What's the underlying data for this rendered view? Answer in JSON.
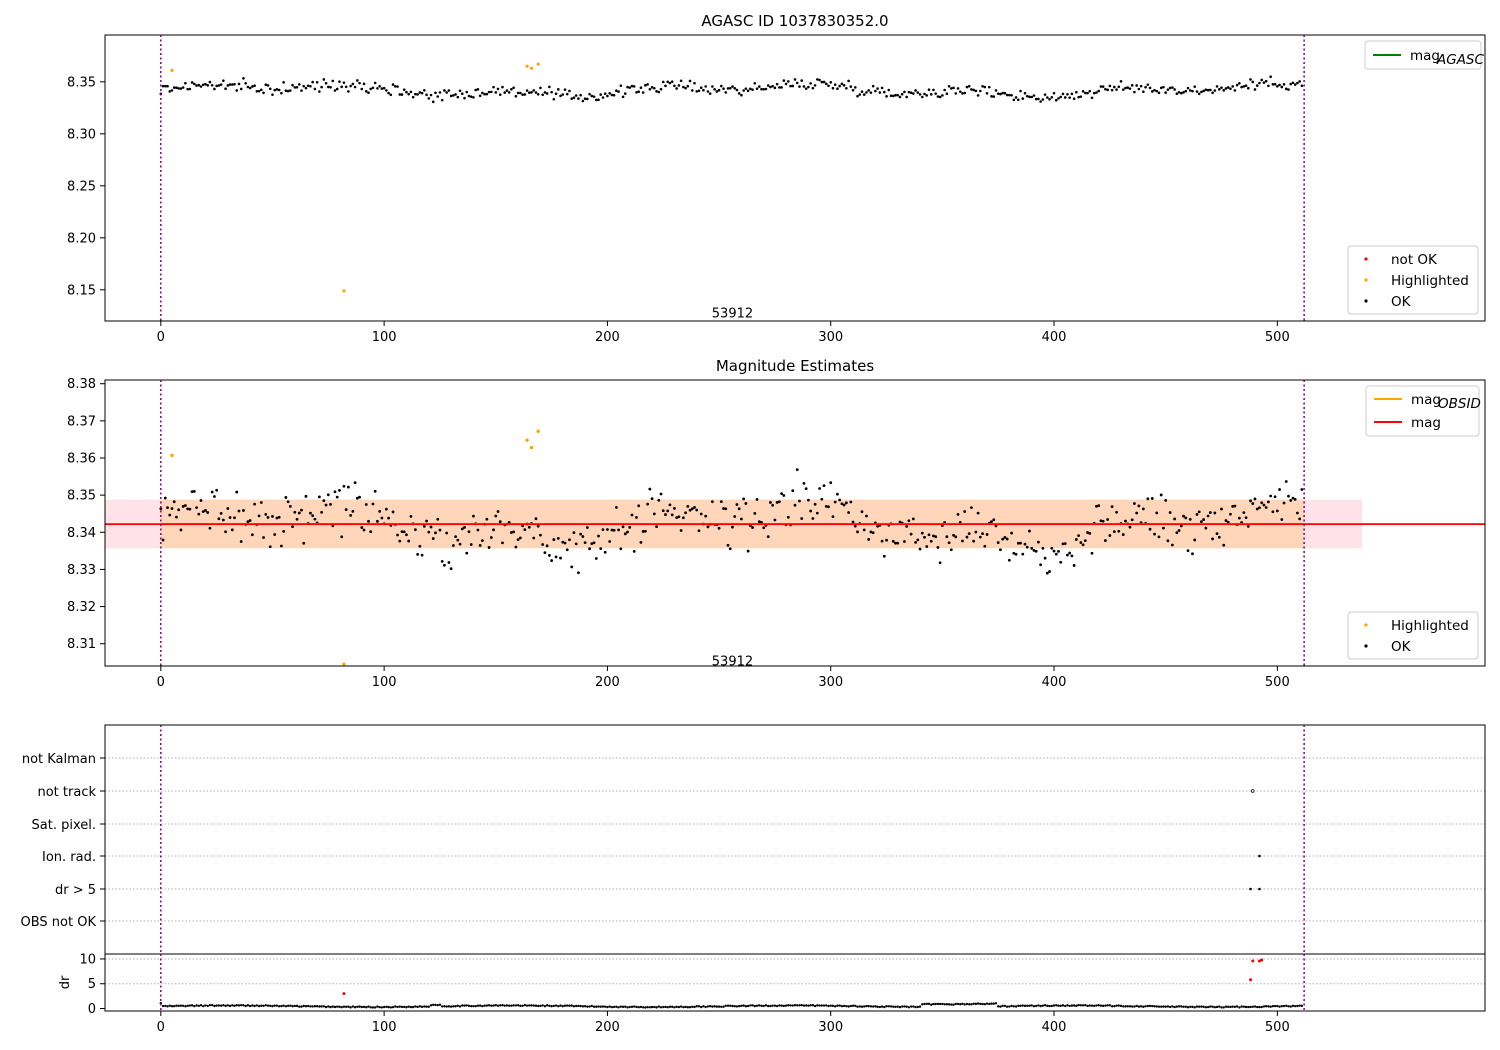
{
  "chart_data": [
    {
      "type": "scatter",
      "title": "AGASC ID 1037830352.0",
      "xlim": [
        -25,
        593
      ],
      "ylim": [
        8.12,
        8.395
      ],
      "xticks": [
        0,
        100,
        200,
        300,
        400,
        500
      ],
      "yticks": [
        8.15,
        8.2,
        8.25,
        8.3,
        8.35
      ],
      "ytick_labels": [
        "8.15",
        "8.20",
        "8.25",
        "8.30",
        "8.35"
      ],
      "vlines": [
        0,
        512
      ],
      "annotation": {
        "text": "53912",
        "x": 256,
        "y": 8.128
      },
      "baseline": 8.342,
      "noise": 0.006,
      "n_points": 512,
      "highlighted": [
        {
          "x": 5,
          "y": 8.361
        },
        {
          "x": 164,
          "y": 8.365
        },
        {
          "x": 166,
          "y": 8.363
        },
        {
          "x": 169,
          "y": 8.367
        },
        {
          "x": 82,
          "y": 8.149
        }
      ],
      "legend_lines": [
        {
          "label": "mag",
          "sub": "AGASC",
          "color": "#008000"
        }
      ],
      "legend_points": [
        {
          "label": "not OK",
          "color": "#ff0000"
        },
        {
          "label": "Highlighted",
          "color": "#ffa500"
        },
        {
          "label": "OK",
          "color": "#000000"
        }
      ]
    },
    {
      "type": "scatter",
      "title": "Magnitude Estimates",
      "xlim": [
        -25,
        593
      ],
      "ylim": [
        8.304,
        8.381
      ],
      "xticks": [
        0,
        100,
        200,
        300,
        400,
        500
      ],
      "yticks": [
        8.31,
        8.32,
        8.33,
        8.34,
        8.35,
        8.36,
        8.37,
        8.38
      ],
      "ytick_labels": [
        "8.31",
        "8.32",
        "8.33",
        "8.34",
        "8.35",
        "8.36",
        "8.37",
        "8.38"
      ],
      "vlines": [
        0,
        512
      ],
      "annotation": {
        "text": "53912",
        "x": 256,
        "y": 8.3055
      },
      "mag": 8.3422,
      "band_outer": [
        8.3357,
        8.3488
      ],
      "band_inner": [
        8.3357,
        8.3488
      ],
      "band_x": [
        -25,
        538
      ],
      "baseline": 8.342,
      "noise": 0.0065,
      "n_points": 512,
      "highlighted": [
        {
          "x": 5,
          "y": 8.3607
        },
        {
          "x": 164,
          "y": 8.3648
        },
        {
          "x": 166,
          "y": 8.3628
        },
        {
          "x": 169,
          "y": 8.3672
        },
        {
          "x": 82,
          "y": 8.3045
        }
      ],
      "legend_lines": [
        {
          "label": "mag",
          "sub": "OBSID",
          "color": "#ffa500"
        },
        {
          "label": "mag",
          "sub": "",
          "color": "#ff0000"
        }
      ],
      "legend_points": [
        {
          "label": "Highlighted",
          "color": "#ffa500"
        },
        {
          "label": "OK",
          "color": "#000000"
        }
      ]
    },
    {
      "type": "scatter",
      "title": "",
      "xlim": [
        -25,
        593
      ],
      "categories": [
        "OBS not OK",
        "dr > 5",
        "Ion. rad.",
        "Sat. pixel.",
        "not track",
        "not Kalman"
      ],
      "flag_points": [
        {
          "x": 489,
          "category": "not track",
          "style": "hollow"
        },
        {
          "x": 492,
          "category": "Ion. rad.",
          "style": "filled"
        },
        {
          "x": 488,
          "category": "dr > 5",
          "style": "filled"
        },
        {
          "x": 492,
          "category": "dr > 5",
          "style": "filled"
        }
      ],
      "vlines": [
        0,
        512
      ]
    },
    {
      "type": "scatter",
      "title": "",
      "ylabel": "dr",
      "xlim": [
        -25,
        593
      ],
      "ylim": [
        -0.5,
        11
      ],
      "xticks": [
        0,
        100,
        200,
        300,
        400,
        500
      ],
      "yticks": [
        0,
        5,
        10
      ],
      "n_points": 512,
      "outliers": [
        {
          "x": 82,
          "y": 3.0,
          "color": "#ff0000"
        },
        {
          "x": 488,
          "y": 5.8,
          "color": "#ff0000"
        },
        {
          "x": 489,
          "y": 9.6,
          "color": "#ff0000"
        },
        {
          "x": 492,
          "y": 9.6,
          "color": "#ff0000"
        },
        {
          "x": 493,
          "y": 9.8,
          "color": "#ff0000"
        }
      ],
      "vlines": [
        0,
        512
      ]
    }
  ]
}
